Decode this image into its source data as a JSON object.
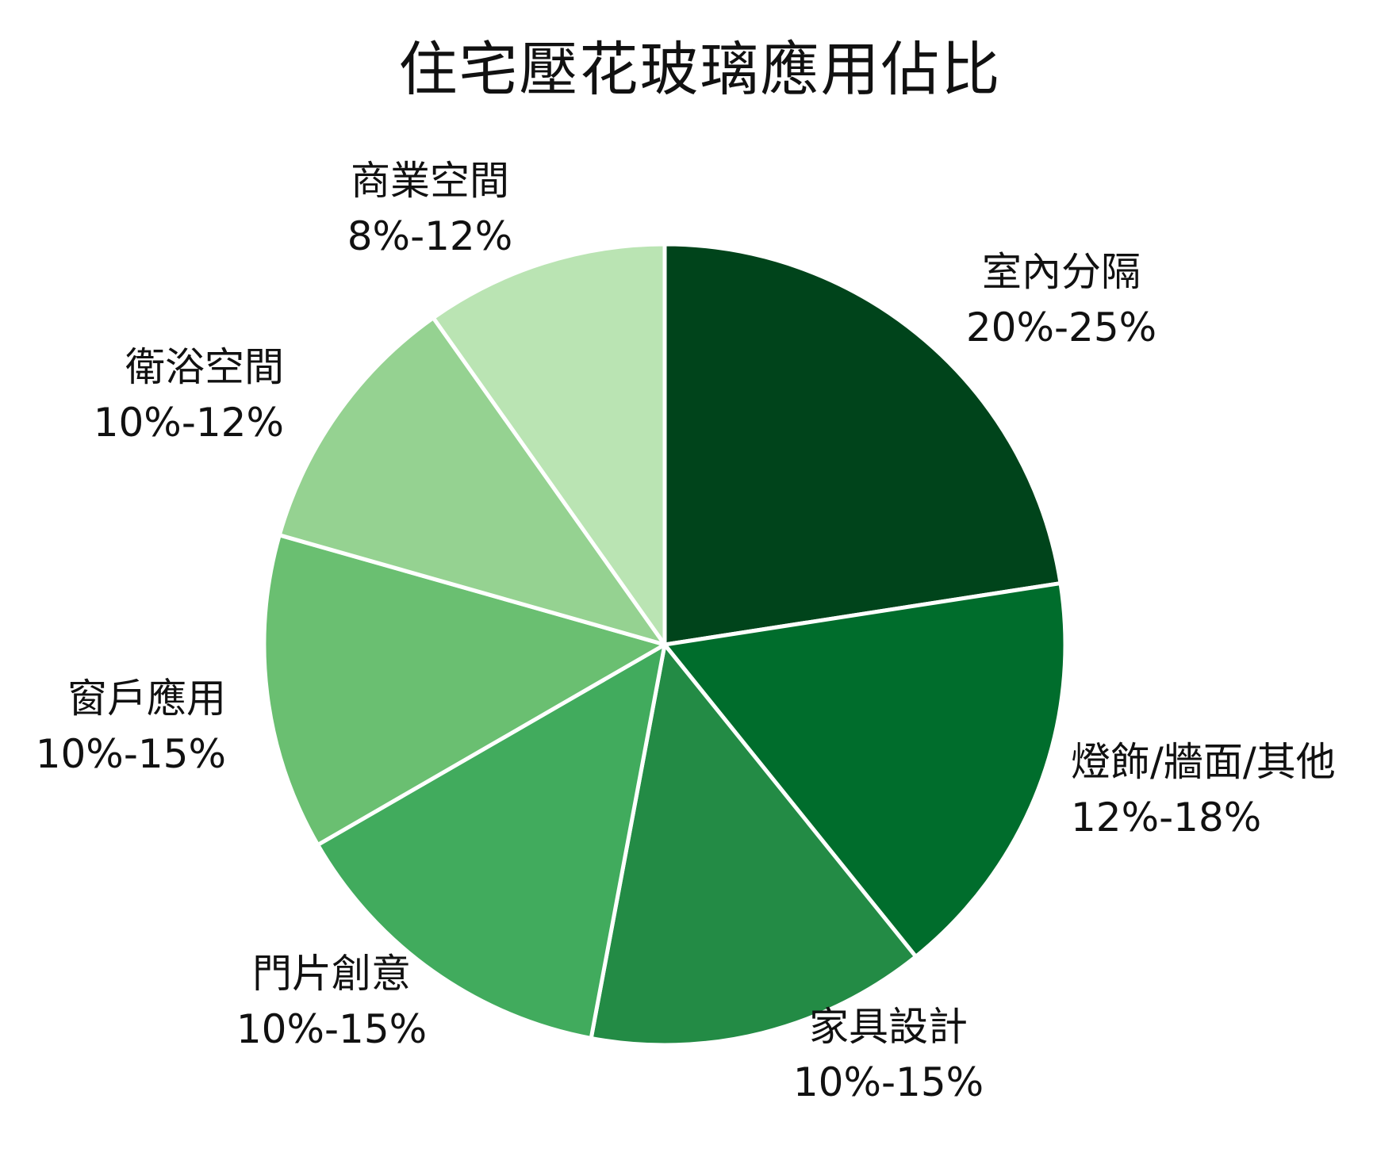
{
  "chart_data": {
    "type": "pie",
    "title": "住宅壓花玻璃應用佔比",
    "slices": [
      {
        "name": "室內分隔",
        "range_label": "20%-25%",
        "value": 23,
        "color": "#00441b"
      },
      {
        "name": "燈飾/牆面/其他",
        "range_label": "12%-18%",
        "value": 17,
        "color": "#006d2c"
      },
      {
        "name": "家具設計",
        "range_label": "10%-15%",
        "value": 14,
        "color": "#238b45"
      },
      {
        "name": "門片創意",
        "range_label": "10%-15%",
        "value": 14,
        "color": "#41ab5d"
      },
      {
        "name": "窗戶應用",
        "range_label": "10%-15%",
        "value": 13,
        "color": "#6abf71"
      },
      {
        "name": "衛浴空間",
        "range_label": "10%-12%",
        "value": 11,
        "color": "#95d291"
      },
      {
        "name": "商業空間",
        "range_label": "8%-12%",
        "value": 10,
        "color": "#bae4b3"
      }
    ]
  }
}
